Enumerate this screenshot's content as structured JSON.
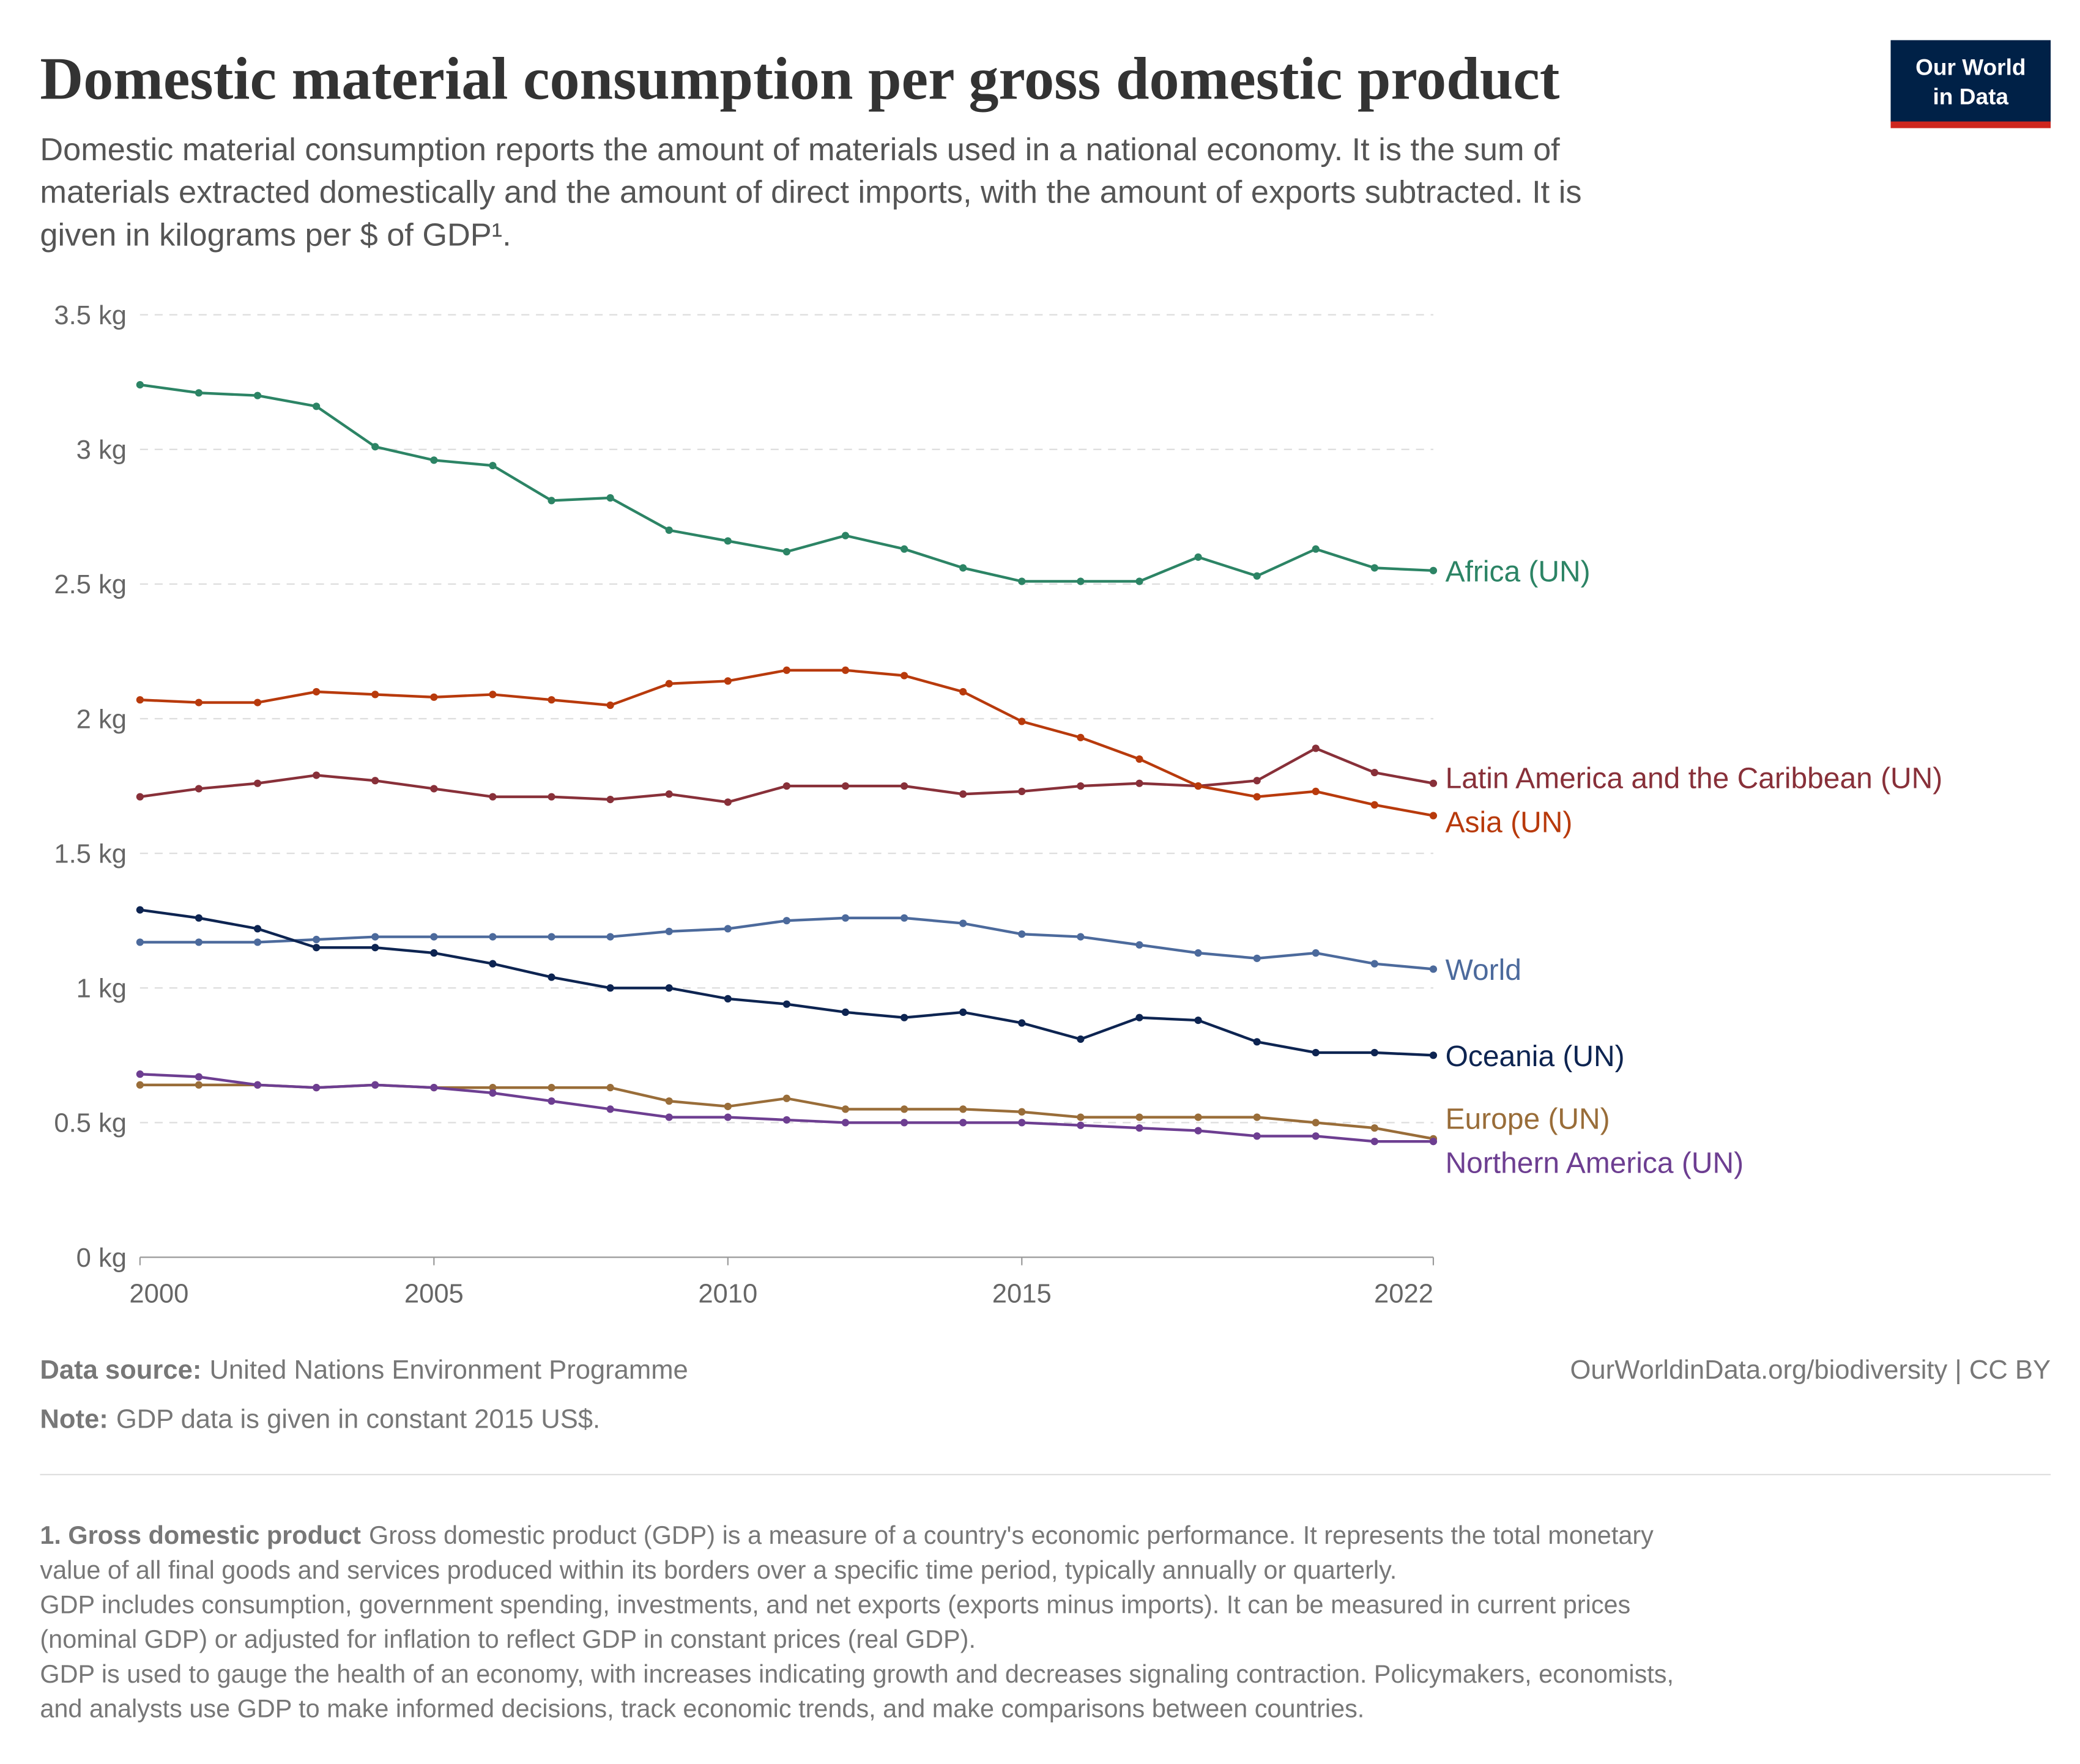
{
  "chart_data": {
    "type": "line",
    "title": "Domestic material consumption per gross domestic product",
    "subtitle": [
      "Domestic material consumption reports the amount of materials used in a national economy. It is the sum of",
      "materials extracted domestically and the amount of direct imports, with the amount of exports subtracted. It is",
      "given in kilograms per $ of GDP¹."
    ],
    "logo": [
      "Our World",
      "in Data"
    ],
    "x": [
      2000,
      2001,
      2002,
      2003,
      2004,
      2005,
      2006,
      2007,
      2008,
      2009,
      2010,
      2011,
      2012,
      2013,
      2014,
      2015,
      2016,
      2017,
      2018,
      2019,
      2020,
      2021,
      2022
    ],
    "xlim": [
      2000,
      2022
    ],
    "xticks": [
      2000,
      2005,
      2010,
      2015,
      2022
    ],
    "ylim": [
      0,
      3.5
    ],
    "yticks": [
      {
        "value": 0,
        "label": "0 kg"
      },
      {
        "value": 0.5,
        "label": "0.5 kg"
      },
      {
        "value": 1,
        "label": "1 kg"
      },
      {
        "value": 1.5,
        "label": "1.5 kg"
      },
      {
        "value": 2,
        "label": "2 kg"
      },
      {
        "value": 2.5,
        "label": "2.5 kg"
      },
      {
        "value": 3,
        "label": "3 kg"
      },
      {
        "value": 3.5,
        "label": "3.5 kg"
      }
    ],
    "grid": true,
    "series": [
      {
        "name": "Africa (UN)",
        "color": "#2c8465",
        "values": [
          3.24,
          3.21,
          3.2,
          3.16,
          3.01,
          2.96,
          2.94,
          2.81,
          2.82,
          2.7,
          2.66,
          2.62,
          2.68,
          2.63,
          2.56,
          2.51,
          2.51,
          2.51,
          2.6,
          2.53,
          2.63,
          2.56,
          2.55
        ]
      },
      {
        "name": "Latin America and the Caribbean (UN)",
        "color": "#883039",
        "values": [
          1.71,
          1.74,
          1.76,
          1.79,
          1.77,
          1.74,
          1.71,
          1.71,
          1.7,
          1.72,
          1.69,
          1.75,
          1.75,
          1.75,
          1.72,
          1.73,
          1.75,
          1.76,
          1.75,
          1.77,
          1.89,
          1.8,
          1.76
        ]
      },
      {
        "name": "Asia (UN)",
        "color": "#b83a0c",
        "values": [
          2.07,
          2.06,
          2.06,
          2.1,
          2.09,
          2.08,
          2.09,
          2.07,
          2.05,
          2.13,
          2.14,
          2.18,
          2.18,
          2.16,
          2.1,
          1.99,
          1.93,
          1.85,
          1.75,
          1.71,
          1.73,
          1.68,
          1.64
        ]
      },
      {
        "name": "World",
        "color": "#4c6a9c",
        "values": [
          1.17,
          1.17,
          1.17,
          1.18,
          1.19,
          1.19,
          1.19,
          1.19,
          1.19,
          1.21,
          1.22,
          1.25,
          1.26,
          1.26,
          1.24,
          1.2,
          1.19,
          1.16,
          1.13,
          1.11,
          1.13,
          1.09,
          1.07
        ]
      },
      {
        "name": "Oceania (UN)",
        "color": "#0d2451",
        "values": [
          1.29,
          1.26,
          1.22,
          1.15,
          1.15,
          1.13,
          1.09,
          1.04,
          1.0,
          1.0,
          0.96,
          0.94,
          0.91,
          0.89,
          0.91,
          0.87,
          0.81,
          0.89,
          0.88,
          0.8,
          0.76,
          0.76,
          0.75
        ]
      },
      {
        "name": "Europe (UN)",
        "color": "#996d39",
        "values": [
          0.64,
          0.64,
          0.64,
          0.63,
          0.64,
          0.63,
          0.63,
          0.63,
          0.63,
          0.58,
          0.56,
          0.59,
          0.55,
          0.55,
          0.55,
          0.54,
          0.52,
          0.52,
          0.52,
          0.52,
          0.5,
          0.48,
          0.44
        ]
      },
      {
        "name": "Northern America (UN)",
        "color": "#6d3e91",
        "values": [
          0.68,
          0.67,
          0.64,
          0.63,
          0.64,
          0.63,
          0.61,
          0.58,
          0.55,
          0.52,
          0.52,
          0.51,
          0.5,
          0.5,
          0.5,
          0.5,
          0.49,
          0.48,
          0.47,
          0.45,
          0.45,
          0.43,
          0.43
        ]
      }
    ],
    "source_label": "Data source:",
    "source": "United Nations Environment Programme",
    "note_label": "Note:",
    "note": "GDP data is given in constant 2015 US$.",
    "credit": "OurWorldinData.org/biodiversity | CC BY",
    "footnote_title": "1. Gross domestic product",
    "footnote": [
      "Gross domestic product (GDP) is a measure of a country's economic performance. It represents the total monetary",
      "value of all final goods and services produced within its borders over a specific time period, typically annually or quarterly.",
      "GDP includes consumption, government spending, investments, and net exports (exports minus imports). It can be measured in current prices",
      "(nominal GDP) or adjusted for inflation to reflect GDP in constant prices (real GDP).",
      "GDP is used to gauge the health of an economy, with increases indicating growth and decreases signaling contraction. Policymakers, economists,",
      "and analysts use GDP to make informed decisions, track economic trends, and make comparisons between countries."
    ]
  }
}
